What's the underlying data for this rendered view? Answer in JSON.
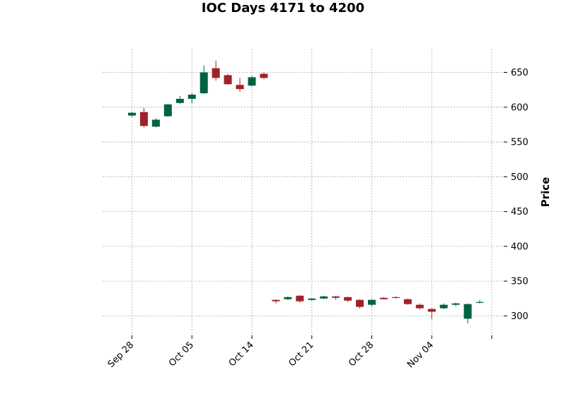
{
  "chart_data": {
    "type": "candlestick",
    "title": "IOC Days 4171 to 4200",
    "ylabel": "Price",
    "ylim": [
      272,
      683
    ],
    "yticks": [
      300,
      350,
      400,
      450,
      500,
      550,
      600,
      650
    ],
    "xticks": [
      {
        "label": "Sep 28",
        "index": 0
      },
      {
        "label": "Oct 05",
        "index": 5
      },
      {
        "label": "Oct 14",
        "index": 10
      },
      {
        "label": "Oct 21",
        "index": 15
      },
      {
        "label": "Oct 28",
        "index": 20
      },
      {
        "label": "Nov 04",
        "index": 25
      },
      {
        "label": "",
        "index": 30
      }
    ],
    "grid": true,
    "up_color": "#006340",
    "down_color": "#a02128",
    "candles": [
      {
        "open": 588,
        "high": 593,
        "low": 586,
        "close": 592
      },
      {
        "open": 593,
        "high": 599,
        "low": 571,
        "close": 573
      },
      {
        "open": 572,
        "high": 584,
        "low": 571,
        "close": 582
      },
      {
        "open": 587,
        "high": 605,
        "low": 586,
        "close": 604
      },
      {
        "open": 606,
        "high": 616,
        "low": 605,
        "close": 612
      },
      {
        "open": 612,
        "high": 620,
        "low": 606,
        "close": 618
      },
      {
        "open": 620,
        "high": 660,
        "low": 619,
        "close": 650
      },
      {
        "open": 656,
        "high": 667,
        "low": 638,
        "close": 642
      },
      {
        "open": 646,
        "high": 648,
        "low": 632,
        "close": 633
      },
      {
        "open": 632,
        "high": 642,
        "low": 622,
        "close": 626
      },
      {
        "open": 631,
        "high": 645,
        "low": 630,
        "close": 643
      },
      {
        "open": 648,
        "high": 650,
        "low": 640,
        "close": 642
      },
      {
        "open": 323,
        "high": 324,
        "low": 318,
        "close": 321
      },
      {
        "open": 324,
        "high": 328,
        "low": 323,
        "close": 327
      },
      {
        "open": 329,
        "high": 330,
        "low": 319,
        "close": 321
      },
      {
        "open": 323,
        "high": 326,
        "low": 322,
        "close": 325
      },
      {
        "open": 325,
        "high": 329,
        "low": 324,
        "close": 328
      },
      {
        "open": 328,
        "high": 329,
        "low": 323,
        "close": 326
      },
      {
        "open": 327,
        "high": 328,
        "low": 320,
        "close": 322
      },
      {
        "open": 323,
        "high": 324,
        "low": 311,
        "close": 313
      },
      {
        "open": 316,
        "high": 324,
        "low": 314,
        "close": 323
      },
      {
        "open": 326,
        "high": 327,
        "low": 324,
        "close": 324
      },
      {
        "open": 327,
        "high": 328,
        "low": 325,
        "close": 326
      },
      {
        "open": 324,
        "high": 325,
        "low": 316,
        "close": 317
      },
      {
        "open": 316,
        "high": 318,
        "low": 309,
        "close": 311
      },
      {
        "open": 310,
        "high": 311,
        "low": 295,
        "close": 306
      },
      {
        "open": 311,
        "high": 318,
        "low": 310,
        "close": 316
      },
      {
        "open": 316,
        "high": 319,
        "low": 314,
        "close": 318
      },
      {
        "open": 296,
        "high": 318,
        "low": 289,
        "close": 317
      },
      {
        "open": 319,
        "high": 323,
        "low": 318,
        "close": 320
      }
    ]
  }
}
